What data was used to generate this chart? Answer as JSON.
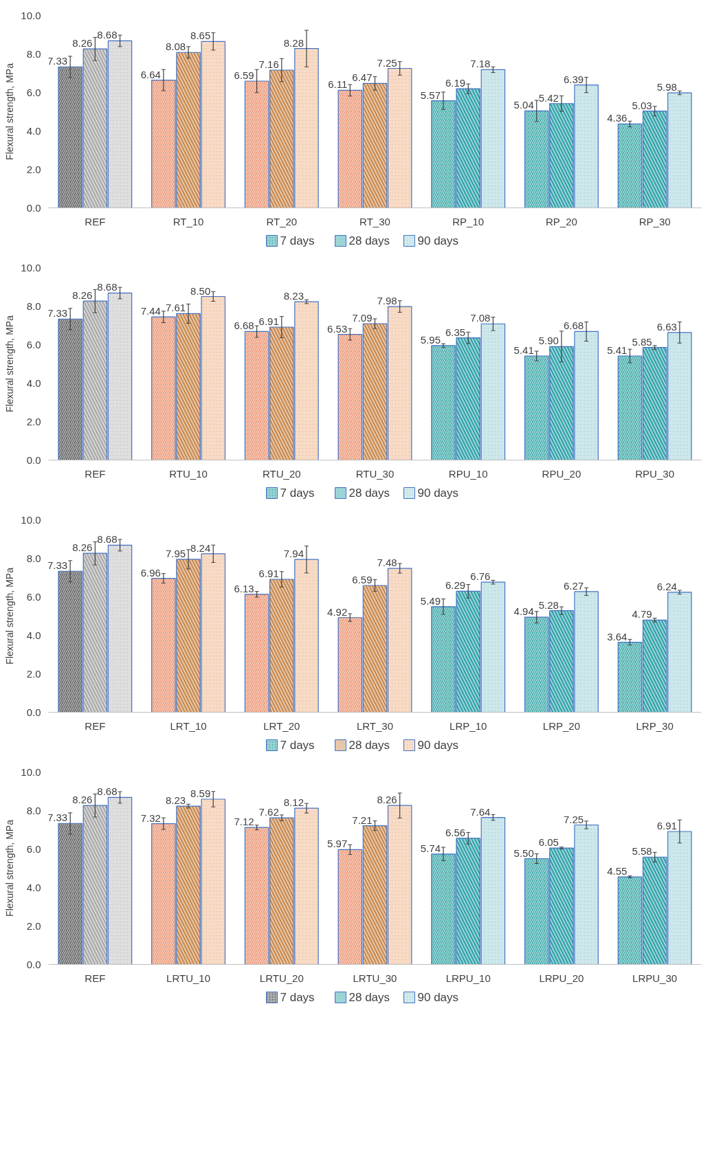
{
  "chart_data": [
    {
      "type": "bar",
      "ylabel": "Flexural strength, MPa",
      "categories": [
        "REF",
        "RT_10",
        "RT_20",
        "RT_30",
        "RP_10",
        "RP_20",
        "RP_30"
      ],
      "ylim": [
        0,
        10
      ],
      "yticks": [
        {
          "value": 0,
          "label": "0.0"
        },
        {
          "value": 2,
          "label": "2.0"
        },
        {
          "value": 4,
          "label": "4.0"
        },
        {
          "value": 6,
          "label": "6.0"
        },
        {
          "value": 8,
          "label": "8.0"
        },
        {
          "value": 10,
          "label": "10.0"
        }
      ],
      "grid": false,
      "legend": "bottom",
      "series": [
        {
          "name": "7 days",
          "color": "#1a9a9a",
          "colors": [
            "#404040",
            "#e8825a",
            "#e8825a",
            "#e8825a",
            "#1a9a9a",
            "#1a9a9a",
            "#1a9a9a"
          ],
          "values": [
            7.33,
            6.64,
            6.59,
            6.11,
            5.57,
            5.04,
            4.36
          ],
          "value_labels": [
            "7.33",
            "6.64",
            "6.59",
            "6.11",
            "5.57",
            "5.04",
            "4.36"
          ],
          "errors": [
            0.55,
            0.55,
            0.6,
            0.3,
            0.45,
            0.55,
            0.15
          ]
        },
        {
          "name": "28 days",
          "color": "#2aa0a8",
          "colors": [
            "#a6a6a6",
            "#c8864a",
            "#c8864a",
            "#c8864a",
            "#2aa0a8",
            "#2aa0a8",
            "#2aa0a8"
          ],
          "values": [
            8.26,
            8.08,
            7.16,
            6.47,
            6.19,
            5.42,
            5.03
          ],
          "value_labels": [
            "8.26",
            "8.08",
            "7.16",
            "6.47",
            "6.19",
            "5.42",
            "5.03"
          ],
          "errors": [
            0.6,
            0.3,
            0.6,
            0.35,
            0.25,
            0.4,
            0.25
          ]
        },
        {
          "name": "90 days",
          "color": "#9dd0d8",
          "colors": [
            "#bfbfbf",
            "#f0b890",
            "#f0b890",
            "#f0b890",
            "#9dd0d8",
            "#9dd0d8",
            "#9dd0d8"
          ],
          "values": [
            8.68,
            8.65,
            8.28,
            7.25,
            7.18,
            6.39,
            5.98
          ],
          "value_labels": [
            "8.68",
            "8.65",
            "8.28",
            "7.25",
            "7.18",
            "6.39",
            "5.98"
          ],
          "errors": [
            0.3,
            0.45,
            0.95,
            0.35,
            0.15,
            0.4,
            0.1
          ]
        }
      ]
    },
    {
      "type": "bar",
      "ylabel": "Flexural strength, MPa",
      "categories": [
        "REF",
        "RTU_10",
        "RTU_20",
        "RTU_30",
        "RPU_10",
        "RPU_20",
        "RPU_30"
      ],
      "ylim": [
        0,
        10
      ],
      "yticks": [
        {
          "value": 0,
          "label": "0.0"
        },
        {
          "value": 2,
          "label": "2.0"
        },
        {
          "value": 4,
          "label": "4.0"
        },
        {
          "value": 6,
          "label": "6.0"
        },
        {
          "value": 8,
          "label": "8.0"
        },
        {
          "value": 10,
          "label": "10.0"
        }
      ],
      "grid": false,
      "legend": "bottom",
      "series": [
        {
          "name": "7 days",
          "color": "#1a9a9a",
          "colors": [
            "#404040",
            "#e8825a",
            "#e8825a",
            "#e8825a",
            "#1a9a9a",
            "#1a9a9a",
            "#1a9a9a"
          ],
          "values": [
            7.33,
            7.44,
            6.68,
            6.53,
            5.95,
            5.41,
            5.41
          ],
          "value_labels": [
            "7.33",
            "7.44",
            "6.68",
            "6.53",
            "5.95",
            "5.41",
            "5.41"
          ],
          "errors": [
            0.55,
            0.3,
            0.3,
            0.3,
            0.1,
            0.25,
            0.35
          ]
        },
        {
          "name": "28 days",
          "color": "#2aa0a8",
          "colors": [
            "#a6a6a6",
            "#c8864a",
            "#c8864a",
            "#c8864a",
            "#2aa0a8",
            "#2aa0a8",
            "#2aa0a8"
          ],
          "values": [
            8.26,
            7.61,
            6.91,
            7.09,
            6.35,
            5.9,
            5.85
          ],
          "value_labels": [
            "8.26",
            "7.61",
            "6.91",
            "7.09",
            "6.35",
            "5.90",
            "5.85"
          ],
          "errors": [
            0.6,
            0.5,
            0.55,
            0.25,
            0.3,
            0.8,
            0.1
          ]
        },
        {
          "name": "90 days",
          "color": "#9dd0d8",
          "colors": [
            "#bfbfbf",
            "#f0b890",
            "#f0b890",
            "#f0b890",
            "#9dd0d8",
            "#9dd0d8",
            "#9dd0d8"
          ],
          "values": [
            8.68,
            8.5,
            8.23,
            7.98,
            7.08,
            6.68,
            6.63
          ],
          "value_labels": [
            "8.68",
            "8.50",
            "8.23",
            "7.98",
            "7.08",
            "6.68",
            "6.63"
          ],
          "errors": [
            0.3,
            0.25,
            0.1,
            0.3,
            0.35,
            0.5,
            0.55
          ]
        }
      ]
    },
    {
      "type": "bar",
      "ylabel": "Flexural strength, MPa",
      "categories": [
        "REF",
        "LRT_10",
        "LRT_20",
        "LRT_30",
        "LRP_10",
        "LRP_20",
        "LRP_30"
      ],
      "ylim": [
        0,
        10
      ],
      "yticks": [
        {
          "value": 0,
          "label": "0.0"
        },
        {
          "value": 2,
          "label": "2.0"
        },
        {
          "value": 4,
          "label": "4.0"
        },
        {
          "value": 6,
          "label": "6.0"
        },
        {
          "value": 8,
          "label": "8.0"
        },
        {
          "value": 10,
          "label": "10.0"
        }
      ],
      "grid": false,
      "legend": "bottom",
      "series": [
        {
          "name": "7 days",
          "color": "#1a9a9a",
          "colors": [
            "#404040",
            "#e8825a",
            "#e8825a",
            "#e8825a",
            "#1a9a9a",
            "#1a9a9a",
            "#1a9a9a"
          ],
          "values": [
            7.33,
            6.96,
            6.13,
            4.92,
            5.49,
            4.94,
            3.64
          ],
          "value_labels": [
            "7.33",
            "6.96",
            "6.13",
            "4.92",
            "5.49",
            "4.94",
            "3.64"
          ],
          "errors": [
            0.55,
            0.25,
            0.15,
            0.2,
            0.4,
            0.3,
            0.15
          ]
        },
        {
          "name": "28 days",
          "color": "#c8864a",
          "colors": [
            "#a6a6a6",
            "#c8864a",
            "#c8864a",
            "#c8864a",
            "#2aa0a8",
            "#2aa0a8",
            "#2aa0a8"
          ],
          "values": [
            8.26,
            7.95,
            6.91,
            6.59,
            6.29,
            5.28,
            4.79
          ],
          "value_labels": [
            "8.26",
            "7.95",
            "6.91",
            "6.59",
            "6.29",
            "5.28",
            "4.79"
          ],
          "errors": [
            0.6,
            0.5,
            0.4,
            0.3,
            0.35,
            0.2,
            0.1
          ]
        },
        {
          "name": "90 days",
          "color": "#f0b890",
          "colors": [
            "#bfbfbf",
            "#f0b890",
            "#f0b890",
            "#f0b890",
            "#9dd0d8",
            "#9dd0d8",
            "#9dd0d8"
          ],
          "values": [
            8.68,
            8.24,
            7.94,
            7.48,
            6.76,
            6.27,
            6.24
          ],
          "value_labels": [
            "8.68",
            "8.24",
            "7.94",
            "7.48",
            "6.76",
            "6.27",
            "6.24"
          ],
          "errors": [
            0.3,
            0.45,
            0.7,
            0.25,
            0.1,
            0.2,
            0.1
          ]
        }
      ]
    },
    {
      "type": "bar",
      "ylabel": "Flexural strength, MPa",
      "categories": [
        "REF",
        "LRTU_10",
        "LRTU_20",
        "LRTU_30",
        "LRPU_10",
        "LRPU_20",
        "LRPU_30"
      ],
      "ylim": [
        0,
        10
      ],
      "yticks": [
        {
          "value": 0,
          "label": "0.0"
        },
        {
          "value": 2,
          "label": "2.0"
        },
        {
          "value": 4,
          "label": "4.0"
        },
        {
          "value": 6,
          "label": "6.0"
        },
        {
          "value": 8,
          "label": "8.0"
        },
        {
          "value": 10,
          "label": "10.0"
        }
      ],
      "grid": false,
      "legend": "bottom",
      "series": [
        {
          "name": "7 days",
          "color": "#404040",
          "colors": [
            "#404040",
            "#e8825a",
            "#e8825a",
            "#e8825a",
            "#1a9a9a",
            "#1a9a9a",
            "#1a9a9a"
          ],
          "values": [
            7.33,
            7.32,
            7.12,
            5.97,
            5.74,
            5.5,
            4.55
          ],
          "value_labels": [
            "7.33",
            "7.32",
            "7.12",
            "5.97",
            "5.74",
            "5.50",
            "4.55"
          ],
          "errors": [
            0.55,
            0.3,
            0.12,
            0.25,
            0.35,
            0.25,
            0.05
          ]
        },
        {
          "name": "28 days",
          "color": "#2aa0a8",
          "colors": [
            "#a6a6a6",
            "#c8864a",
            "#c8864a",
            "#c8864a",
            "#2aa0a8",
            "#2aa0a8",
            "#2aa0a8"
          ],
          "values": [
            8.26,
            8.23,
            7.62,
            7.21,
            6.56,
            6.05,
            5.58
          ],
          "value_labels": [
            "8.26",
            "8.23",
            "7.62",
            "7.21",
            "6.56",
            "6.05",
            "5.58"
          ],
          "errors": [
            0.6,
            0.1,
            0.15,
            0.25,
            0.3,
            0.05,
            0.25
          ]
        },
        {
          "name": "90 days",
          "color": "#9dd0d8",
          "colors": [
            "#bfbfbf",
            "#f0b890",
            "#f0b890",
            "#f0b890",
            "#9dd0d8",
            "#9dd0d8",
            "#9dd0d8"
          ],
          "values": [
            8.68,
            8.59,
            8.12,
            8.26,
            7.64,
            7.25,
            6.91
          ],
          "value_labels": [
            "8.68",
            "8.59",
            "8.12",
            "8.26",
            "7.64",
            "7.25",
            "6.91"
          ],
          "errors": [
            0.3,
            0.4,
            0.25,
            0.65,
            0.15,
            0.2,
            0.6
          ]
        }
      ]
    }
  ]
}
